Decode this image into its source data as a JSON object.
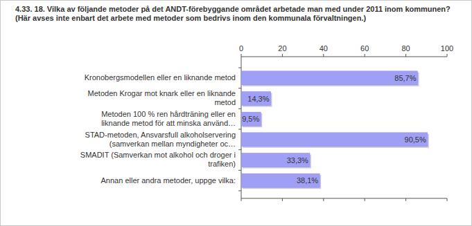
{
  "chart_data": {
    "type": "bar",
    "orientation": "horizontal",
    "title": "4.33. 18. Vilka av följande metoder på det ANDT-förebyggande området arbetade man med under 2011 inom kommunen? (Här avses inte enbart det arbete med metoder som bedrivs inom den kommunala förvaltningen.)",
    "categories": [
      "Kronobergsmodellen eller en liknande metod",
      "Metoden Krogar mot knark eller en liknande metod",
      "Metoden 100 % ren hårdträning eller en liknande metod för att minska använd…",
      "STAD-metoden, Ansvarsfull alkoholservering (samverkan mellan myndigheter oc…",
      "SMADIT (Samverkan mot alkohol och droger i trafiken)",
      "Annan eller andra metoder, uppge vilka:"
    ],
    "values": [
      85.7,
      14.3,
      9.5,
      90.5,
      33.3,
      38.1
    ],
    "value_labels": [
      "85,7%",
      "14,3%",
      "9,5%",
      "90,5%",
      "33,3%",
      "38,1%"
    ],
    "data_labels": true,
    "color": "#9f9ff5",
    "xlim": [
      0,
      100
    ],
    "xticks": [
      0,
      20,
      40,
      60,
      80,
      100
    ],
    "grid": false
  }
}
